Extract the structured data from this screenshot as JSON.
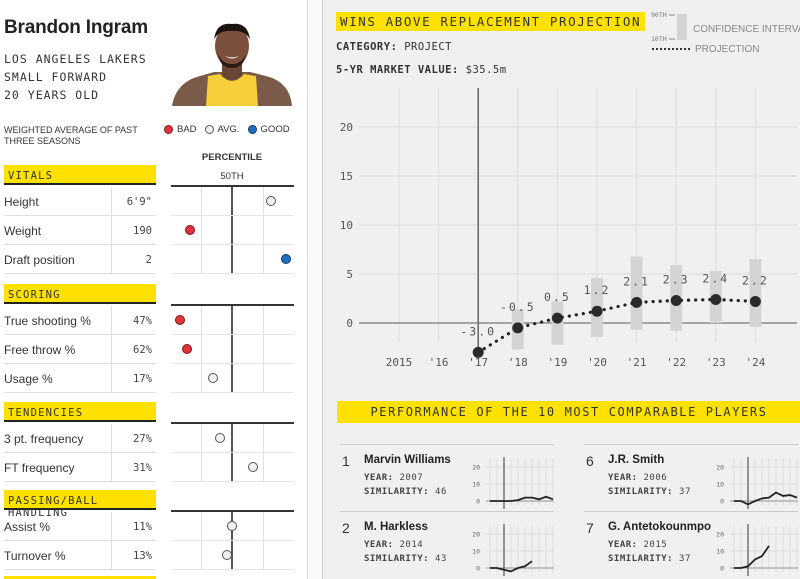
{
  "player": {
    "name": "Brandon Ingram",
    "team": "LOS ANGELES LAKERS",
    "position": "SMALL FORWARD",
    "age": "20 YEARS OLD",
    "photo_alt": "player-headshot"
  },
  "stats_panel": {
    "weighted_note": "WEIGHTED AVERAGE OF PAST THREE SEASONS",
    "legend": [
      {
        "label": "BAD",
        "color": "#e0333a"
      },
      {
        "label": "AVG.",
        "color": "#f0f0f0"
      },
      {
        "label": "GOOD",
        "color": "#1f6fc0"
      }
    ],
    "percentile_label": "PERCENTILE",
    "percentile_mid": "50TH",
    "sections": [
      {
        "title": "VITALS",
        "rows": [
          {
            "label": "Height",
            "value": "6'9\"",
            "percentile": 0.85,
            "rating": "avg"
          },
          {
            "label": "Weight",
            "value": "190",
            "percentile": 0.12,
            "rating": "bad"
          },
          {
            "label": "Draft position",
            "value": "2",
            "percentile": 0.99,
            "rating": "good"
          }
        ]
      },
      {
        "title": "SCORING",
        "rows": [
          {
            "label": "True shooting %",
            "value": "47%",
            "percentile": 0.03,
            "rating": "bad"
          },
          {
            "label": "Free throw %",
            "value": "62%",
            "percentile": 0.09,
            "rating": "bad"
          },
          {
            "label": "Usage %",
            "value": "17%",
            "percentile": 0.33,
            "rating": "avg"
          }
        ]
      },
      {
        "title": "TENDENCIES",
        "rows": [
          {
            "label": "3 pt. frequency",
            "value": "27%",
            "percentile": 0.39,
            "rating": "avg"
          },
          {
            "label": "FT frequency",
            "value": "31%",
            "percentile": 0.69,
            "rating": "avg"
          }
        ]
      },
      {
        "title": "PASSING/BALL HANDLING",
        "rows": [
          {
            "label": "Assist %",
            "value": "11%",
            "percentile": 0.5,
            "rating": "avg"
          },
          {
            "label": "Turnover %",
            "value": "13%",
            "percentile": 0.45,
            "rating": "avg"
          }
        ]
      }
    ]
  },
  "projection": {
    "title": "WINS ABOVE REPLACEMENT PROJECTION",
    "category_label": "CATEGORY:",
    "category_value": "PROJECT",
    "market_label": "5-YR MARKET VALUE:",
    "market_value": "$35.5m",
    "legend": {
      "ci_top": "90TH",
      "ci_bottom": "10TH",
      "ci_label": "CONFIDENCE INTERVAL",
      "projection_label": "PROJECTION"
    }
  },
  "chart_data": {
    "type": "line",
    "title": "WINS ABOVE REPLACEMENT PROJECTION",
    "xlabel": "",
    "ylabel": "",
    "x": [
      "2015",
      "'16",
      "'17",
      "'18",
      "'19",
      "'20",
      "'21",
      "'22",
      "'23",
      "'24"
    ],
    "ylim": [
      -3.5,
      24
    ],
    "yticks": [
      0,
      5,
      10,
      15,
      20
    ],
    "grid": true,
    "series": [
      {
        "name": "Projection",
        "points": [
          {
            "x": "'17",
            "y": -3.0,
            "label": "-3.0"
          },
          {
            "x": "'18",
            "y": -0.5,
            "label": "-0.5"
          },
          {
            "x": "'19",
            "y": 0.5,
            "label": "0.5"
          },
          {
            "x": "'20",
            "y": 1.2,
            "label": "1.2"
          },
          {
            "x": "'21",
            "y": 2.1,
            "label": "2.1"
          },
          {
            "x": "'22",
            "y": 2.3,
            "label": "2.3"
          },
          {
            "x": "'23",
            "y": 2.4,
            "label": "2.4"
          },
          {
            "x": "'24",
            "y": 2.2,
            "label": "2.2"
          }
        ]
      },
      {
        "name": "Confidence interval",
        "ranges": [
          {
            "x": "'18",
            "low": -2.7,
            "high": 1.4
          },
          {
            "x": "'19",
            "low": -2.2,
            "high": 2.2
          },
          {
            "x": "'20",
            "low": -1.4,
            "high": 4.6
          },
          {
            "x": "'21",
            "low": -0.7,
            "high": 6.8
          },
          {
            "x": "'22",
            "low": -0.8,
            "high": 5.9
          },
          {
            "x": "'23",
            "low": 0.0,
            "high": 5.3
          },
          {
            "x": "'24",
            "low": -0.4,
            "high": 6.5
          }
        ]
      }
    ],
    "current_year_marker": "'17"
  },
  "comparables": {
    "title": "PERFORMANCE OF THE 10 MOST COMPARABLE PLAYERS",
    "year_label": "YEAR:",
    "similarity_label": "SIMILARITY:",
    "spark_ticks": [
      "20",
      "10",
      "0"
    ],
    "players": [
      {
        "rank": "1",
        "name": "Marvin Williams",
        "year": "2007",
        "similarity": "46",
        "war": [
          0,
          0,
          0,
          0,
          0.5,
          2,
          2,
          1,
          2.5,
          1
        ]
      },
      {
        "rank": "6",
        "name": "J.R. Smith",
        "year": "2006",
        "similarity": "37",
        "war": [
          0,
          0,
          -2,
          0,
          1.5,
          2,
          5,
          3,
          3.5,
          2
        ]
      },
      {
        "rank": "2",
        "name": "M. Harkless",
        "year": "2014",
        "similarity": "43",
        "war": [
          0,
          0,
          -1,
          -2,
          0,
          1,
          4
        ]
      },
      {
        "rank": "7",
        "name": "G. Antetokounmpo",
        "year": "2015",
        "similarity": "37",
        "war": [
          0,
          0,
          1,
          5,
          7,
          13
        ]
      }
    ]
  }
}
